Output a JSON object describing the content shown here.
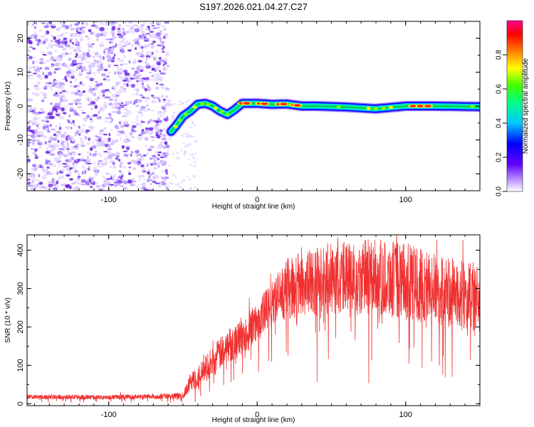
{
  "chart_data": [
    {
      "type": "heatmap",
      "title": "S197.2026.021.04.27.C27",
      "xlabel": "Height of straight line (km)",
      "ylabel": "Frequency (Hz)",
      "xlim": [
        -155,
        150
      ],
      "ylim": [
        -25,
        25
      ],
      "xticks": [
        -100,
        0,
        100
      ],
      "xtick_labels": [
        "-100",
        "0",
        "100"
      ],
      "yticks": [
        -20,
        -10,
        0,
        10,
        20
      ],
      "ytick_labels": [
        "-20",
        "-10",
        "0",
        "10",
        "20"
      ],
      "noise_region_x": [
        -155,
        -60
      ],
      "ridge": {
        "x": [
          -58,
          -55,
          -50,
          -45,
          -40,
          -35,
          -30,
          -25,
          -20,
          -15,
          -10,
          -5,
          0,
          10,
          20,
          30,
          40,
          60,
          80,
          100,
          120,
          150
        ],
        "y": [
          -7.5,
          -6,
          -3,
          -1.5,
          0.5,
          0.8,
          0,
          -1.5,
          -2.5,
          -1,
          0.8,
          0.8,
          0.8,
          0.5,
          0.6,
          0,
          0,
          -0.3,
          -0.8,
          0,
          0,
          -0.2
        ]
      },
      "colorbar": {
        "label": "Normalized spectral amplitude",
        "range": [
          0,
          1
        ],
        "ticks": [
          0.0,
          0.2,
          0.4,
          0.6,
          0.8
        ],
        "tick_labels": [
          "0.0",
          "0.2",
          "0.4",
          "0.6",
          "0.8"
        ],
        "colormap": [
          "#ffffff",
          "#7f00ff",
          "#0000ff",
          "#00c8ff",
          "#00ff66",
          "#ffff00",
          "#ff8000",
          "#ff0000",
          "#ff00aa"
        ]
      }
    },
    {
      "type": "line",
      "xlabel": "Height of straight line (km)",
      "ylabel": "SNR (10 * v/v)",
      "xlim": [
        -155,
        150
      ],
      "ylim": [
        -5,
        440
      ],
      "xticks": [
        -100,
        0,
        100
      ],
      "xtick_labels": [
        "-100",
        "0",
        "100"
      ],
      "yticks": [
        0,
        100,
        200,
        300,
        400
      ],
      "ytick_labels": [
        "0",
        "100",
        "200",
        "300",
        "400"
      ],
      "series": [
        {
          "name": "SNR",
          "color": "#f03030",
          "envelope_x": [
            -155,
            -100,
            -50,
            -45,
            -40,
            -30,
            -20,
            -10,
            0,
            10,
            20,
            40,
            60,
            80,
            100,
            120,
            150
          ],
          "envelope_mean": [
            18,
            17,
            20,
            55,
            70,
            110,
            150,
            175,
            210,
            260,
            300,
            320,
            330,
            330,
            320,
            300,
            270
          ],
          "envelope_spread": [
            6,
            6,
            8,
            25,
            30,
            40,
            45,
            50,
            55,
            65,
            80,
            90,
            95,
            100,
            100,
            95,
            90
          ]
        }
      ]
    }
  ]
}
